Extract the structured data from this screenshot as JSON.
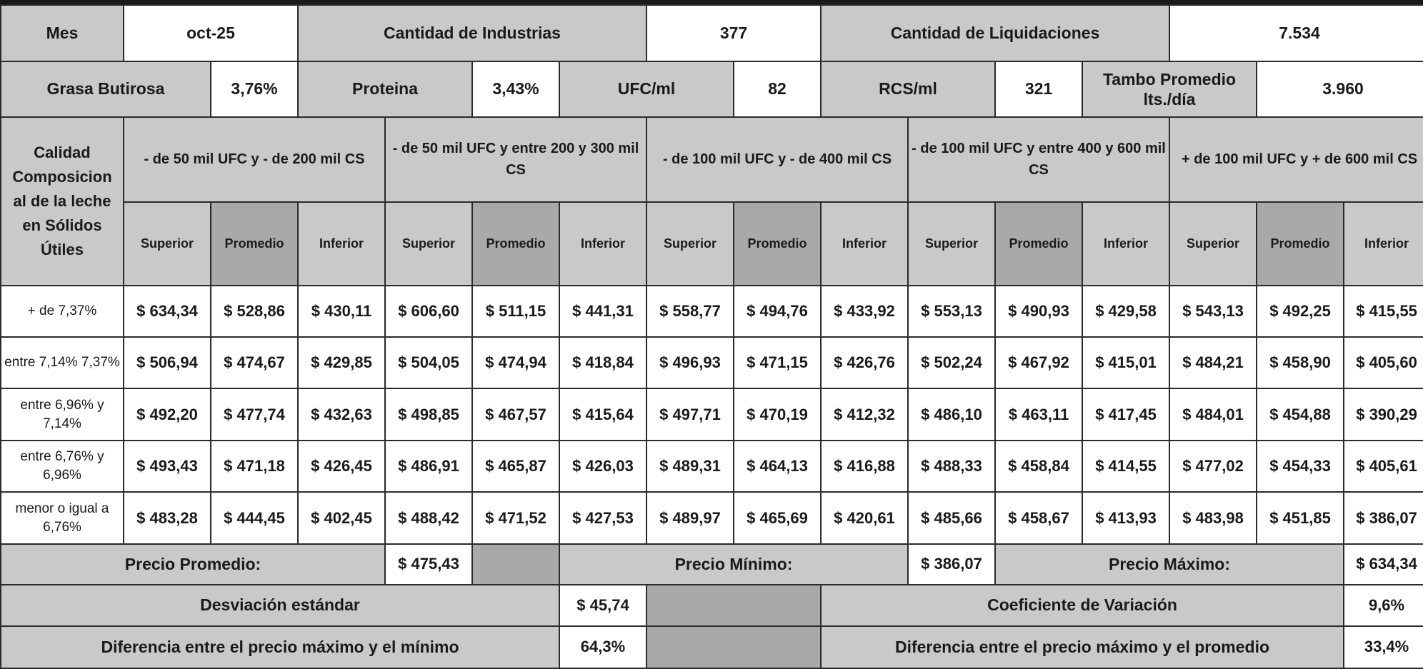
{
  "header": {
    "mes_label": "Mes",
    "mes_value": "oct-25",
    "industrias_label": "Cantidad de Industrias",
    "industrias_value": "377",
    "liquidaciones_label": "Cantidad de Liquidaciones",
    "liquidaciones_value": "7.534"
  },
  "composicion": {
    "grasa_label": "Grasa Butirosa",
    "grasa_value": "3,76%",
    "proteina_label": "Proteina",
    "proteina_value": "3,43%",
    "ufc_label": "UFC/ml",
    "ufc_value": "82",
    "rcs_label": "RCS/ml",
    "rcs_value": "321",
    "tambo_label_1": "Tambo Promedio",
    "tambo_label_2": "lts./día",
    "tambo_value": "3.960"
  },
  "table": {
    "calidad_label": "Calidad Composicion al de la leche en Sólidos Útiles",
    "groups": [
      {
        "label": "- de 50 mil UFC y - de 200 mil CS"
      },
      {
        "label": "- de 50 mil UFC y entre 200 y 300 mil CS"
      },
      {
        "label": "- de 100 mil UFC y - de 400 mil CS"
      },
      {
        "label": "- de 100 mil UFC y entre 400 y 600 mil CS"
      },
      {
        "label": "+ de 100 mil UFC y + de 600 mil CS"
      }
    ],
    "sub_labels": [
      "Superior",
      "Promedio",
      "Inferior"
    ],
    "rows": [
      {
        "label": "+ de 7,37%",
        "values": [
          "$ 634,34",
          "$ 528,86",
          "$ 430,11",
          "$ 606,60",
          "$ 511,15",
          "$ 441,31",
          "$ 558,77",
          "$ 494,76",
          "$ 433,92",
          "$ 553,13",
          "$ 490,93",
          "$ 429,58",
          "$ 543,13",
          "$ 492,25",
          "$ 415,55"
        ]
      },
      {
        "label": "entre 7,14% 7,37%",
        "values": [
          "$ 506,94",
          "$ 474,67",
          "$ 429,85",
          "$ 504,05",
          "$ 474,94",
          "$ 418,84",
          "$ 496,93",
          "$ 471,15",
          "$ 426,76",
          "$ 502,24",
          "$ 467,92",
          "$ 415,01",
          "$ 484,21",
          "$ 458,90",
          "$ 405,60"
        ]
      },
      {
        "label": "entre 6,96% y 7,14%",
        "values": [
          "$ 492,20",
          "$ 477,74",
          "$ 432,63",
          "$ 498,85",
          "$ 467,57",
          "$ 415,64",
          "$ 497,71",
          "$ 470,19",
          "$ 412,32",
          "$ 486,10",
          "$ 463,11",
          "$ 417,45",
          "$ 484,01",
          "$ 454,88",
          "$ 390,29"
        ]
      },
      {
        "label": "entre 6,76% y 6,96%",
        "values": [
          "$ 493,43",
          "$ 471,18",
          "$ 426,45",
          "$ 486,91",
          "$ 465,87",
          "$ 426,03",
          "$ 489,31",
          "$ 464,13",
          "$ 416,88",
          "$ 488,33",
          "$ 458,84",
          "$ 414,55",
          "$ 477,02",
          "$ 454,33",
          "$ 405,61"
        ]
      },
      {
        "label": "menor o igual a 6,76%",
        "values": [
          "$ 483,28",
          "$ 444,45",
          "$ 402,45",
          "$ 488,42",
          "$ 471,52",
          "$ 427,53",
          "$ 489,97",
          "$ 465,69",
          "$ 420,61",
          "$ 485,66",
          "$ 458,67",
          "$ 413,93",
          "$ 483,98",
          "$ 451,85",
          "$ 386,07"
        ]
      }
    ]
  },
  "summary": {
    "precio_promedio_label": "Precio Promedio:",
    "precio_promedio_value": "$ 475,43",
    "precio_minimo_label": "Precio Mínimo:",
    "precio_minimo_value": "$ 386,07",
    "precio_maximo_label": "Precio Máximo:",
    "precio_maximo_value": "$ 634,34",
    "desviacion_label": "Desviación estándar",
    "desviacion_value": "$ 45,74",
    "coeficiente_label": "Coeficiente de Variación",
    "coeficiente_value": "9,6%",
    "dif_min_label": "Diferencia entre el precio máximo y el mínimo",
    "dif_min_value": "64,3%",
    "dif_prom_label": "Diferencia entre el precio máximo y el promedio",
    "dif_prom_value": "33,4%"
  }
}
